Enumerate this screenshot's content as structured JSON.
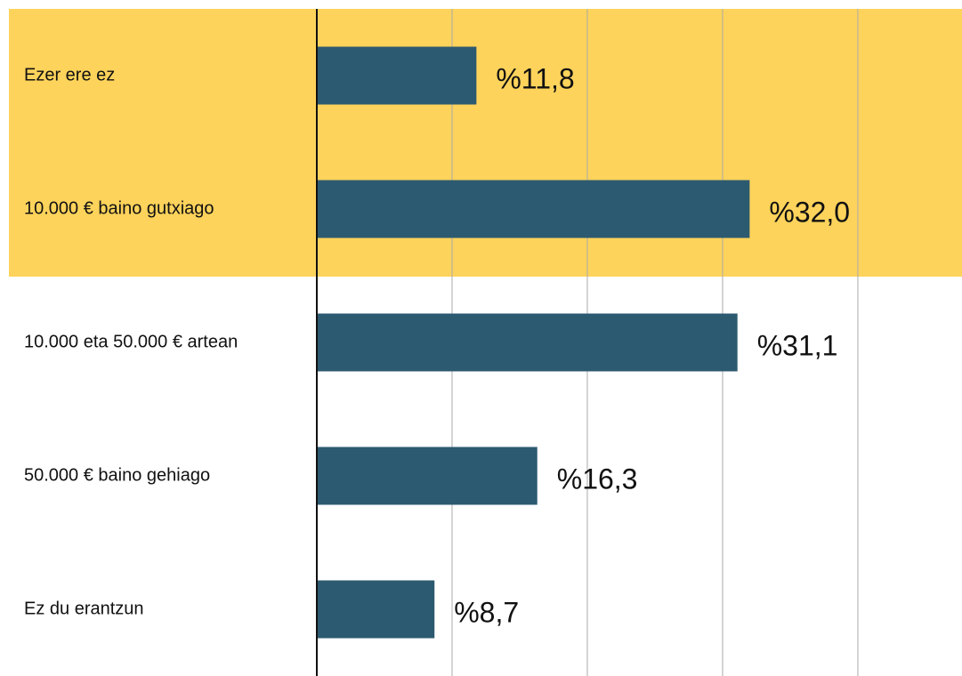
{
  "chart_data": {
    "type": "bar",
    "orientation": "horizontal",
    "categories": [
      "Ezer ere ez",
      "10.000 € baino gutxiago",
      "10.000 eta 50.000 € artean",
      "50.000 € baino gehiago",
      "Ez du erantzun"
    ],
    "values": [
      11.8,
      32.0,
      31.1,
      16.3,
      8.7
    ],
    "value_labels": [
      "%11,8",
      "%32,0",
      "%31,1",
      "%16,3",
      "%8,7"
    ],
    "color": "#2c5a70",
    "xlim": [
      0,
      47.7
    ],
    "xticks": [
      0,
      10,
      20,
      30,
      40
    ],
    "grid": true,
    "highlight": {
      "color": "#fed35b",
      "categories": [
        0,
        1
      ]
    }
  }
}
